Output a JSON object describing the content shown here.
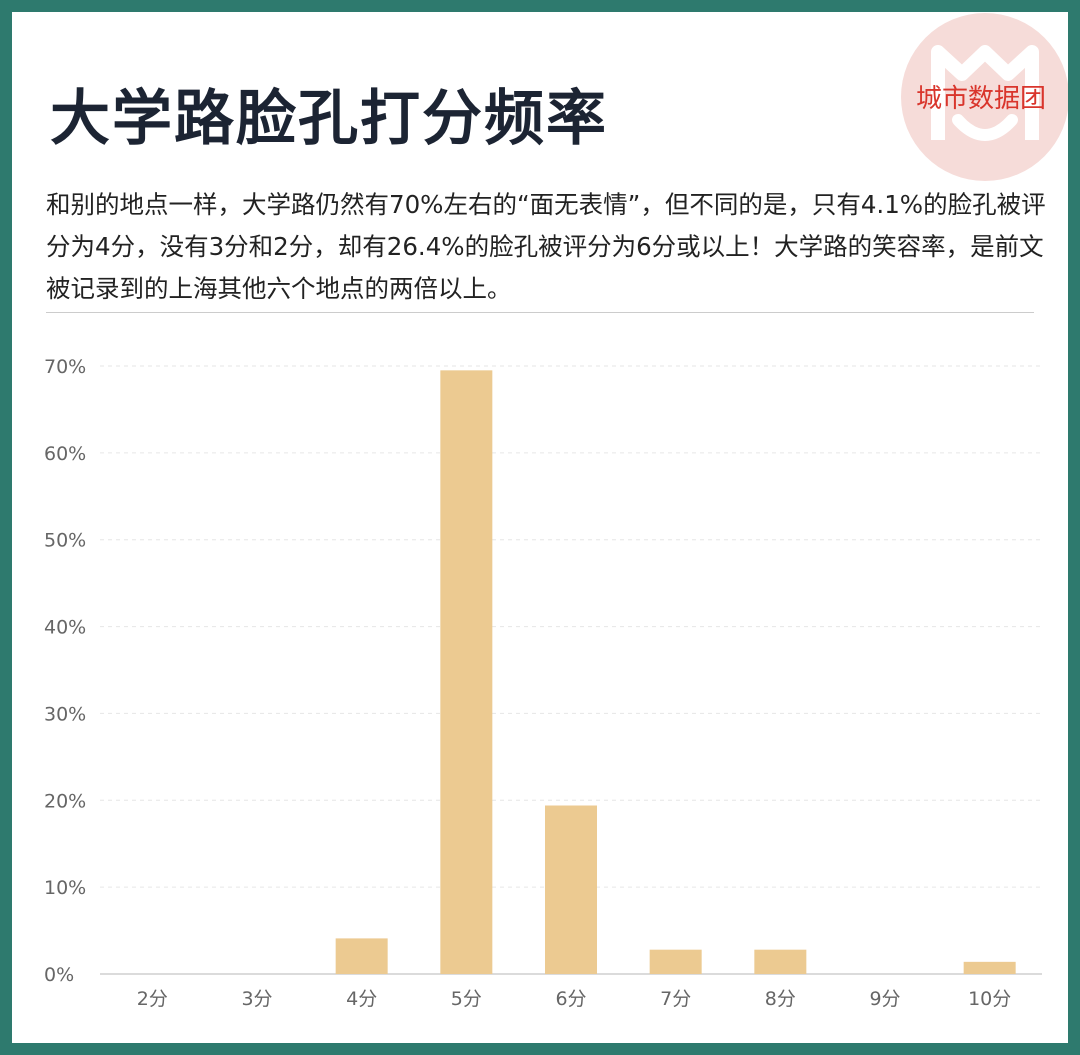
{
  "header": {
    "title": "大学路脸孔打分频率",
    "brand": "城市数据团"
  },
  "description": "和别的地点一样，大学路仍然有70%左右的“面无表情”，但不同的是，只有4.1%的脸孔被评分为4分，没有3分和2分，却有26.4%的脸孔被评分为6分或以上！大学路的笑容率，是前文被记录到的上海其他六个地点的两倍以上。",
  "colors": {
    "frame": "#2e7a6e",
    "bar": "#ecca91",
    "title": "#1c2433",
    "brand": "#d9352c"
  },
  "chart_data": {
    "type": "bar",
    "categories": [
      "2分",
      "3分",
      "4分",
      "5分",
      "6分",
      "7分",
      "8分",
      "9分",
      "10分"
    ],
    "values": [
      0,
      0,
      4.1,
      69.5,
      19.4,
      2.8,
      2.8,
      0,
      1.4
    ],
    "yticks": [
      "0%",
      "10%",
      "20%",
      "30%",
      "40%",
      "50%",
      "60%",
      "70%"
    ],
    "ylim": [
      0,
      70
    ],
    "grid": true
  }
}
